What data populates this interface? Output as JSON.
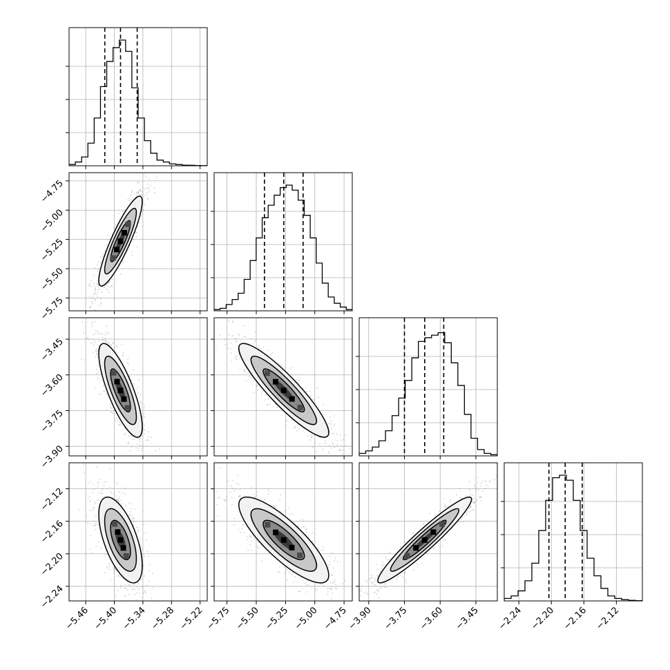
{
  "chart_data": {
    "type": "corner",
    "title": "",
    "params": [
      {
        "range": [
          -5.495,
          -5.205
        ],
        "ticks": [
          -5.46,
          -5.4,
          -5.34,
          -5.28,
          -5.22
        ],
        "tick_labels": [
          "−5.46",
          "−5.40",
          "−5.34",
          "−5.28",
          "−5.22"
        ],
        "quantiles": [
          -5.42,
          -5.387,
          -5.352
        ],
        "hist": [
          0.01,
          0.03,
          0.07,
          0.18,
          0.38,
          0.63,
          0.83,
          0.94,
          1.0,
          0.91,
          0.62,
          0.38,
          0.2,
          0.1,
          0.045,
          0.03,
          0.015,
          0.01,
          0.005,
          0.004,
          0.002,
          0.001
        ],
        "center": -5.387,
        "sigma": 0.019
      },
      {
        "range": [
          -5.86,
          -4.68
        ],
        "ticks": [
          -5.75,
          -5.5,
          -5.25,
          -5.0,
          -4.75
        ],
        "tick_labels": [
          "−5.75",
          "−5.50",
          "−5.25",
          "−5.00",
          "−4.75"
        ],
        "quantiles": [
          -5.43,
          -5.265,
          -5.1
        ],
        "hist": [
          0.01,
          0.02,
          0.05,
          0.09,
          0.14,
          0.25,
          0.4,
          0.58,
          0.74,
          0.84,
          0.92,
          0.98,
          1.0,
          0.96,
          0.88,
          0.76,
          0.58,
          0.38,
          0.22,
          0.11,
          0.06,
          0.03,
          0.01
        ],
        "center": -5.265,
        "sigma": 0.16
      },
      {
        "range": [
          -3.94,
          -3.36
        ],
        "ticks": [
          -3.9,
          -3.75,
          -3.6,
          -3.45
        ],
        "tick_labels": [
          "−3.90",
          "−3.75",
          "−3.60",
          "−3.45"
        ],
        "quantiles": [
          -3.75,
          -3.665,
          -3.585
        ],
        "hist": [
          0.02,
          0.04,
          0.07,
          0.12,
          0.2,
          0.32,
          0.46,
          0.6,
          0.78,
          0.91,
          0.94,
          0.96,
          0.98,
          0.9,
          0.74,
          0.56,
          0.33,
          0.14,
          0.05,
          0.02,
          0.01
        ],
        "center": -3.665,
        "sigma": 0.082
      },
      {
        "range": [
          -2.258,
          -2.088
        ],
        "ticks": [
          -2.24,
          -2.2,
          -2.16,
          -2.12
        ],
        "tick_labels": [
          "−2.24",
          "−2.20",
          "−2.16",
          "−2.12"
        ],
        "quantiles": [
          -2.203,
          -2.183,
          -2.162
        ],
        "hist": [
          0.02,
          0.04,
          0.08,
          0.16,
          0.3,
          0.56,
          0.8,
          0.98,
          1.0,
          0.96,
          0.8,
          0.56,
          0.34,
          0.2,
          0.1,
          0.04,
          0.02,
          0.01,
          0.005,
          0.002
        ],
        "center": -2.183,
        "sigma": 0.022
      }
    ],
    "row_ticks": [
      null,
      {
        "ticks": [
          -5.75,
          -5.5,
          -5.25,
          -5.0,
          -4.75
        ],
        "tick_labels": [
          "−5.75",
          "−5.50",
          "−5.25",
          "−5.00",
          "−4.75"
        ]
      },
      {
        "ticks": [
          -3.9,
          -3.75,
          -3.6,
          -3.45
        ],
        "tick_labels": [
          "−3.90",
          "−3.75",
          "−3.60",
          "−3.45"
        ]
      },
      {
        "ticks": [
          -2.24,
          -2.2,
          -2.16,
          -2.12
        ],
        "tick_labels": [
          "−2.24",
          "−2.20",
          "−2.16",
          "−2.12"
        ]
      }
    ],
    "correlations": {
      "1-0": 0.88,
      "2-0": -0.78,
      "2-1": -0.9,
      "3-0": -0.6,
      "3-1": -0.82,
      "3-2": 0.95
    },
    "grid": true,
    "colors": {
      "line": "#000000",
      "grid": "#b0b0b0",
      "points": "#9a9a9a",
      "fill_levels": [
        "#f2f2f2",
        "#c8c8c8",
        "#8a8a8a",
        "#3a3a3a",
        "#000000"
      ]
    }
  }
}
